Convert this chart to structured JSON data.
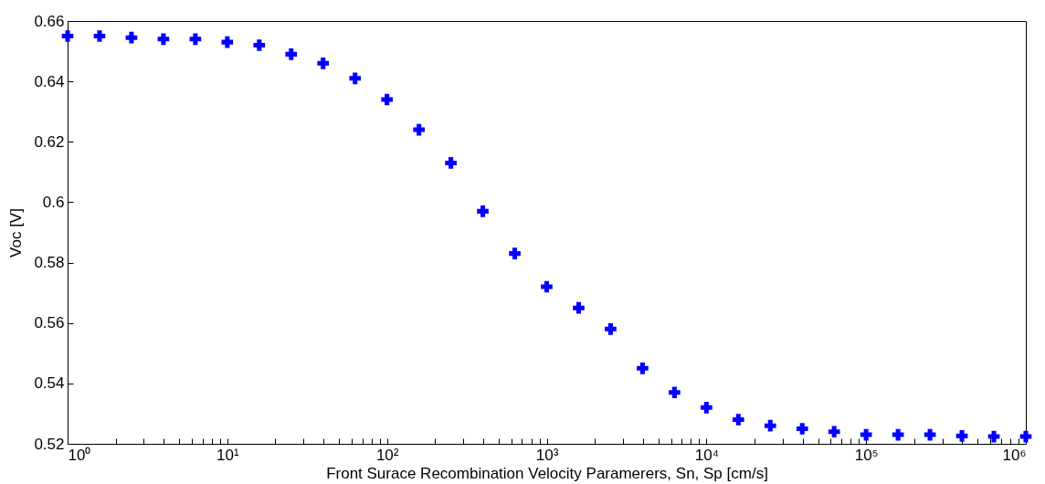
{
  "chart_data": {
    "type": "scatter",
    "xlabel": "Front Surace Recombination Velocity Paramerers, Sn, Sp [cm/s]",
    "ylabel": "Voc [V]",
    "log": "x",
    "marker": "cross",
    "grid": false,
    "x": [
      1,
      1.585,
      2.512,
      3.981,
      6.31,
      10,
      15.85,
      25.12,
      39.81,
      63.1,
      100,
      158.5,
      251.2,
      398.1,
      631,
      1000,
      1585,
      2512,
      3981,
      6310,
      10000,
      15850,
      25120,
      39810,
      63100,
      100000,
      158500,
      251200,
      398100,
      631000,
      1000000
    ],
    "series": [
      {
        "color": "#0000ff",
        "values": [
          0.655,
          0.655,
          0.6545,
          0.654,
          0.654,
          0.653,
          0.652,
          0.649,
          0.646,
          0.641,
          0.634,
          0.624,
          0.613,
          0.597,
          0.583,
          0.572,
          0.565,
          0.558,
          0.545,
          0.537,
          0.532,
          0.528,
          0.526,
          0.525,
          0.524,
          0.523,
          0.523,
          0.523,
          0.5226,
          0.5224,
          0.5224
        ]
      }
    ],
    "xlim": [
      1,
      1000000
    ],
    "ylim": [
      0.52,
      0.66
    ],
    "yticks": [
      0.52,
      0.54,
      0.56,
      0.58,
      0.6,
      0.62,
      0.64,
      0.66
    ],
    "xticks": [
      {
        "value": 1,
        "label": "10⁰"
      },
      {
        "value": 2,
        "label": null
      },
      {
        "value": 3,
        "label": null
      },
      {
        "value": 4,
        "label": null
      },
      {
        "value": 5,
        "label": null
      },
      {
        "value": 6,
        "label": null
      },
      {
        "value": 7,
        "label": null
      },
      {
        "value": 8,
        "label": null
      },
      {
        "value": 9,
        "label": null
      },
      {
        "value": 10,
        "label": "10¹"
      },
      {
        "value": 20,
        "label": null
      },
      {
        "value": 30,
        "label": null
      },
      {
        "value": 40,
        "label": null
      },
      {
        "value": 50,
        "label": null
      },
      {
        "value": 60,
        "label": null
      },
      {
        "value": 70,
        "label": null
      },
      {
        "value": 80,
        "label": null
      },
      {
        "value": 90,
        "label": null
      },
      {
        "value": 100,
        "label": "10²"
      },
      {
        "value": 200,
        "label": null
      },
      {
        "value": 300,
        "label": null
      },
      {
        "value": 400,
        "label": null
      },
      {
        "value": 500,
        "label": null
      },
      {
        "value": 600,
        "label": null
      },
      {
        "value": 700,
        "label": null
      },
      {
        "value": 800,
        "label": null
      },
      {
        "value": 900,
        "label": null
      },
      {
        "value": 1000,
        "label": "10³"
      },
      {
        "value": 2000,
        "label": null
      },
      {
        "value": 3000,
        "label": null
      },
      {
        "value": 4000,
        "label": null
      },
      {
        "value": 5000,
        "label": null
      },
      {
        "value": 6000,
        "label": null
      },
      {
        "value": 7000,
        "label": null
      },
      {
        "value": 8000,
        "label": null
      },
      {
        "value": 9000,
        "label": null
      },
      {
        "value": 10000,
        "label": "10⁴"
      },
      {
        "value": 20000,
        "label": null
      },
      {
        "value": 30000,
        "label": null
      },
      {
        "value": 40000,
        "label": null
      },
      {
        "value": 50000,
        "label": null
      },
      {
        "value": 60000,
        "label": null
      },
      {
        "value": 70000,
        "label": null
      },
      {
        "value": 80000,
        "label": null
      },
      {
        "value": 90000,
        "label": null
      },
      {
        "value": 100000,
        "label": "10⁵"
      },
      {
        "value": 200000,
        "label": null
      },
      {
        "value": 300000,
        "label": null
      },
      {
        "value": 400000,
        "label": null
      },
      {
        "value": 500000,
        "label": null
      },
      {
        "value": 600000,
        "label": null
      },
      {
        "value": 700000,
        "label": null
      },
      {
        "value": 800000,
        "label": null
      },
      {
        "value": 900000,
        "label": null
      },
      {
        "value": 1000000,
        "label": "10⁶"
      }
    ]
  }
}
